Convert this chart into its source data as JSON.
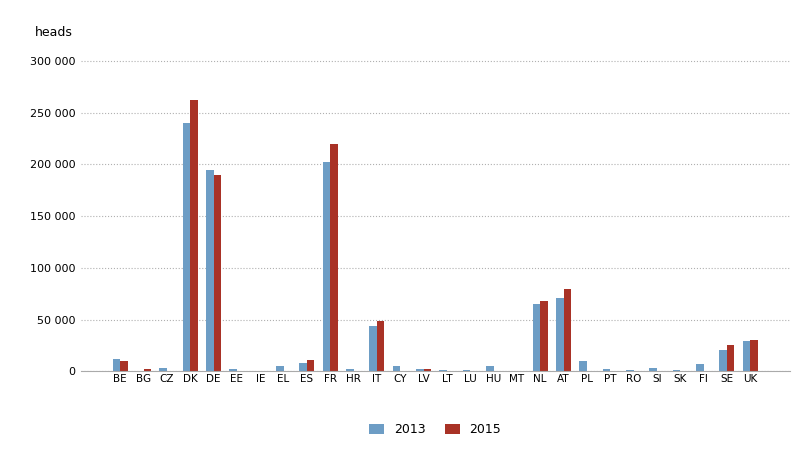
{
  "categories": [
    "BE",
    "BG",
    "CZ",
    "DK",
    "DE",
    "EE",
    "IE",
    "EL",
    "ES",
    "FR",
    "HR",
    "IT",
    "CY",
    "LV",
    "LT",
    "LU",
    "HU",
    "MT",
    "NL",
    "AT",
    "PL",
    "PT",
    "RO",
    "SI",
    "SK",
    "FI",
    "SE",
    "UK"
  ],
  "values_2013": [
    12000,
    500,
    3000,
    240000,
    195000,
    2000,
    500,
    5000,
    8000,
    202000,
    2000,
    44000,
    5000,
    2500,
    1000,
    1500,
    5000,
    500,
    65000,
    71000,
    10000,
    2000,
    1500,
    3500,
    1500,
    7000,
    21000,
    29000
  ],
  "values_2015": [
    10000,
    2500,
    500,
    262000,
    190000,
    0,
    0,
    0,
    11000,
    220000,
    0,
    49000,
    0,
    2000,
    0,
    0,
    0,
    0,
    68000,
    80000,
    0,
    0,
    0,
    0,
    0,
    0,
    26000,
    30000
  ],
  "color_2013": "#6d9dc5",
  "color_2015": "#a93226",
  "ylabel": "heads",
  "ylim": [
    0,
    315000
  ],
  "yticks": [
    0,
    50000,
    100000,
    150000,
    200000,
    250000,
    300000
  ],
  "legend_labels": [
    "2013",
    "2015"
  ],
  "background_color": "#ffffff",
  "grid_color": "#b0b0b0",
  "bar_width": 0.32
}
